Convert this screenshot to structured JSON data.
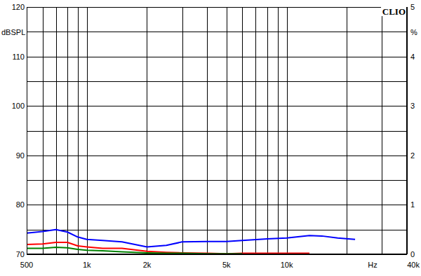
{
  "chart_data": {
    "type": "line",
    "annotations": [
      "CLIO"
    ],
    "x_label": "Hz",
    "y_label": "dBSPL",
    "y2_label": "%",
    "log": "x",
    "grid": true,
    "x": [
      500,
      600,
      700,
      800,
      900,
      1000,
      1200,
      1500,
      2000,
      2500,
      3000,
      4000,
      5000,
      6000,
      8000,
      10000,
      13000,
      15000,
      18000,
      22000
    ],
    "xlim": [
      500,
      40000
    ],
    "xticks": [
      500,
      {
        "value": 1000,
        "label": "1k"
      },
      {
        "value": 2000,
        "label": "2k"
      },
      {
        "value": 5000,
        "label": "5k"
      },
      {
        "value": 10000,
        "label": "10k"
      },
      {
        "value": 40000,
        "label": "40k"
      }
    ],
    "ylim": [
      70,
      120
    ],
    "yticks": [
      70,
      80,
      90,
      100,
      110,
      120
    ],
    "y2lim": [
      0,
      5
    ],
    "y2ticks": [
      0,
      1,
      2,
      3,
      4,
      5
    ],
    "series": [
      {
        "color": "#0000ff",
        "values": [
          74.3,
          74.6,
          75.0,
          74.5,
          73.5,
          73.0,
          72.8,
          72.5,
          71.5,
          71.8,
          72.5,
          72.6,
          72.6,
          72.8,
          73.1,
          73.3,
          73.8,
          73.7,
          73.3,
          73.0
        ]
      },
      {
        "color": "#ff0000",
        "axis": "y2",
        "values": [
          0.2,
          0.21,
          0.24,
          0.24,
          0.17,
          0.15,
          0.12,
          0.12,
          0.06,
          0.04,
          0.03,
          0.02,
          0.01,
          0.02,
          0.02,
          0.02,
          0.02,
          null,
          null,
          null
        ]
      },
      {
        "color": "#008000",
        "axis": "y2",
        "values": [
          0.12,
          0.12,
          0.14,
          0.13,
          0.1,
          0.08,
          0.07,
          0.05,
          0.03,
          0.02,
          0.02,
          0.01,
          0.01,
          0.01,
          null,
          null,
          null,
          null,
          null,
          null
        ]
      }
    ]
  }
}
